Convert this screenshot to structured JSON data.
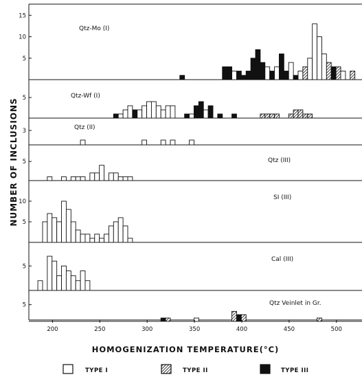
{
  "chart_data": {
    "type": "bar",
    "y_axis_title": "NUMBER OF INCLUSIONS",
    "x_axis_title": "HOMOGENIZATION TEMPERATURE(°C)",
    "x_ticks": [
      200,
      250,
      300,
      350,
      400,
      450,
      500
    ],
    "xlim": [
      175,
      527
    ],
    "bin_width_c": 5,
    "legend": [
      {
        "key": "I",
        "label": "TYPE I",
        "fill": "open"
      },
      {
        "key": "II",
        "label": "TYPE II",
        "fill": "hatched"
      },
      {
        "key": "III",
        "label": "TYPE III",
        "fill": "solid"
      }
    ],
    "panels": [
      {
        "name": "Qtz-Mo (I)",
        "ylim": [
          0,
          16
        ],
        "yticks": [
          5,
          10,
          15
        ],
        "bars": [
          {
            "x": 337,
            "count": 1,
            "type": "III"
          },
          {
            "x": 382,
            "count": 3,
            "type": "III"
          },
          {
            "x": 387,
            "count": 3,
            "type": "III"
          },
          {
            "x": 392,
            "count": 2,
            "type": "I"
          },
          {
            "x": 397,
            "count": 2,
            "type": "III"
          },
          {
            "x": 402,
            "count": 1,
            "type": "III"
          },
          {
            "x": 407,
            "count": 2,
            "type": "III"
          },
          {
            "x": 412,
            "count": 5,
            "type": "III"
          },
          {
            "x": 417,
            "count": 7,
            "type": "III"
          },
          {
            "x": 422,
            "count": 4,
            "type": "III"
          },
          {
            "x": 427,
            "count": 3,
            "type": "I"
          },
          {
            "x": 432,
            "count": 2,
            "type": "III"
          },
          {
            "x": 437,
            "count": 3,
            "type": "I"
          },
          {
            "x": 442,
            "count": 6,
            "type": "III"
          },
          {
            "x": 447,
            "count": 2,
            "type": "III"
          },
          {
            "x": 452,
            "count": 4,
            "type": "I"
          },
          {
            "x": 457,
            "count": 1,
            "type": "III"
          },
          {
            "x": 462,
            "count": 2,
            "type": "I"
          },
          {
            "x": 467,
            "count": 3,
            "type": "II"
          },
          {
            "x": 472,
            "count": 5,
            "type": "I"
          },
          {
            "x": 477,
            "count": 13,
            "type": "I"
          },
          {
            "x": 482,
            "count": 10,
            "type": "I"
          },
          {
            "x": 487,
            "count": 6,
            "type": "I"
          },
          {
            "x": 492,
            "count": 4,
            "type": "II"
          },
          {
            "x": 497,
            "count": 3,
            "type": "III"
          },
          {
            "x": 502,
            "count": 3,
            "type": "II"
          },
          {
            "x": 507,
            "count": 2,
            "type": "I"
          },
          {
            "x": 517,
            "count": 2,
            "type": "II"
          }
        ]
      },
      {
        "name": "Qtz-Wf (I)",
        "ylim": [
          0,
          7
        ],
        "yticks": [
          5
        ],
        "bars": [
          {
            "x": 267,
            "count": 1,
            "type": "III"
          },
          {
            "x": 272,
            "count": 1,
            "type": "I"
          },
          {
            "x": 277,
            "count": 2,
            "type": "I"
          },
          {
            "x": 282,
            "count": 3,
            "type": "I"
          },
          {
            "x": 287,
            "count": 2,
            "type": "III"
          },
          {
            "x": 292,
            "count": 2,
            "type": "I"
          },
          {
            "x": 297,
            "count": 3,
            "type": "I"
          },
          {
            "x": 302,
            "count": 4,
            "type": "I"
          },
          {
            "x": 307,
            "count": 4,
            "type": "I"
          },
          {
            "x": 312,
            "count": 3,
            "type": "I"
          },
          {
            "x": 317,
            "count": 2,
            "type": "I"
          },
          {
            "x": 322,
            "count": 3,
            "type": "I"
          },
          {
            "x": 327,
            "count": 3,
            "type": "I"
          },
          {
            "x": 342,
            "count": 1,
            "type": "III"
          },
          {
            "x": 347,
            "count": 1,
            "type": "I"
          },
          {
            "x": 352,
            "count": 3,
            "type": "III"
          },
          {
            "x": 357,
            "count": 4,
            "type": "III"
          },
          {
            "x": 362,
            "count": 2,
            "type": "I"
          },
          {
            "x": 367,
            "count": 3,
            "type": "III"
          },
          {
            "x": 377,
            "count": 1,
            "type": "III"
          },
          {
            "x": 392,
            "count": 1,
            "type": "III"
          },
          {
            "x": 422,
            "count": 1,
            "type": "II"
          },
          {
            "x": 427,
            "count": 1,
            "type": "II"
          },
          {
            "x": 432,
            "count": 1,
            "type": "II"
          },
          {
            "x": 437,
            "count": 1,
            "type": "II"
          },
          {
            "x": 452,
            "count": 1,
            "type": "II"
          },
          {
            "x": 457,
            "count": 2,
            "type": "II"
          },
          {
            "x": 462,
            "count": 2,
            "type": "II"
          },
          {
            "x": 467,
            "count": 1,
            "type": "II"
          },
          {
            "x": 472,
            "count": 1,
            "type": "II"
          }
        ]
      },
      {
        "name": "Qtz (II)",
        "ylim": [
          0,
          4
        ],
        "yticks": [
          3
        ],
        "bars": [
          {
            "x": 232,
            "count": 1,
            "type": "I"
          },
          {
            "x": 297,
            "count": 1,
            "type": "I"
          },
          {
            "x": 317,
            "count": 1,
            "type": "I"
          },
          {
            "x": 327,
            "count": 1,
            "type": "I"
          },
          {
            "x": 347,
            "count": 1,
            "type": "I"
          }
        ]
      },
      {
        "name": "Qtz (III)",
        "ylim": [
          0,
          7
        ],
        "yticks": [
          5
        ],
        "bars": [
          {
            "x": 197,
            "count": 1,
            "type": "I"
          },
          {
            "x": 212,
            "count": 1,
            "type": "I"
          },
          {
            "x": 222,
            "count": 1,
            "type": "I"
          },
          {
            "x": 227,
            "count": 1,
            "type": "I"
          },
          {
            "x": 232,
            "count": 1,
            "type": "I"
          },
          {
            "x": 242,
            "count": 2,
            "type": "I"
          },
          {
            "x": 247,
            "count": 2,
            "type": "I"
          },
          {
            "x": 252,
            "count": 4,
            "type": "I"
          },
          {
            "x": 262,
            "count": 2,
            "type": "I"
          },
          {
            "x": 267,
            "count": 2,
            "type": "I"
          },
          {
            "x": 272,
            "count": 1,
            "type": "I"
          },
          {
            "x": 277,
            "count": 1,
            "type": "I"
          },
          {
            "x": 282,
            "count": 1,
            "type": "I"
          }
        ]
      },
      {
        "name": "SI (III)",
        "ylim": [
          0,
          13
        ],
        "yticks": [
          5,
          10
        ],
        "bars": [
          {
            "x": 192,
            "count": 5,
            "type": "I"
          },
          {
            "x": 197,
            "count": 7,
            "type": "I"
          },
          {
            "x": 202,
            "count": 6,
            "type": "I"
          },
          {
            "x": 207,
            "count": 5,
            "type": "I"
          },
          {
            "x": 212,
            "count": 10,
            "type": "I"
          },
          {
            "x": 217,
            "count": 8,
            "type": "I"
          },
          {
            "x": 222,
            "count": 5,
            "type": "I"
          },
          {
            "x": 227,
            "count": 3,
            "type": "I"
          },
          {
            "x": 232,
            "count": 2,
            "type": "I"
          },
          {
            "x": 237,
            "count": 2,
            "type": "I"
          },
          {
            "x": 242,
            "count": 1,
            "type": "I"
          },
          {
            "x": 247,
            "count": 2,
            "type": "I"
          },
          {
            "x": 252,
            "count": 1,
            "type": "I"
          },
          {
            "x": 257,
            "count": 2,
            "type": "I"
          },
          {
            "x": 262,
            "count": 4,
            "type": "I"
          },
          {
            "x": 267,
            "count": 5,
            "type": "I"
          },
          {
            "x": 272,
            "count": 6,
            "type": "I"
          },
          {
            "x": 277,
            "count": 4,
            "type": "I"
          },
          {
            "x": 282,
            "count": 1,
            "type": "I"
          }
        ]
      },
      {
        "name": "Cal (III)",
        "ylim": [
          0,
          8
        ],
        "yticks": [
          5
        ],
        "bars": [
          {
            "x": 187,
            "count": 2,
            "type": "I"
          },
          {
            "x": 197,
            "count": 7,
            "type": "I"
          },
          {
            "x": 202,
            "count": 6,
            "type": "I"
          },
          {
            "x": 207,
            "count": 3,
            "type": "I"
          },
          {
            "x": 212,
            "count": 5,
            "type": "I"
          },
          {
            "x": 217,
            "count": 4,
            "type": "I"
          },
          {
            "x": 222,
            "count": 3,
            "type": "I"
          },
          {
            "x": 227,
            "count": 2,
            "type": "I"
          },
          {
            "x": 232,
            "count": 4,
            "type": "I"
          },
          {
            "x": 237,
            "count": 2,
            "type": "I"
          }
        ]
      },
      {
        "name": "Qtz Veinlet in Gr.",
        "ylim": [
          0,
          7
        ],
        "yticks": [
          5
        ],
        "bars": [
          {
            "x": 317,
            "count": 1,
            "type": "III"
          },
          {
            "x": 322,
            "count": 1,
            "type": "II"
          },
          {
            "x": 352,
            "count": 1,
            "type": "I"
          },
          {
            "x": 392,
            "count": 3,
            "type": "II"
          },
          {
            "x": 397,
            "count": 2,
            "type": "III"
          },
          {
            "x": 402,
            "count": 2,
            "type": "II"
          },
          {
            "x": 482,
            "count": 1,
            "type": "II"
          }
        ]
      }
    ]
  }
}
